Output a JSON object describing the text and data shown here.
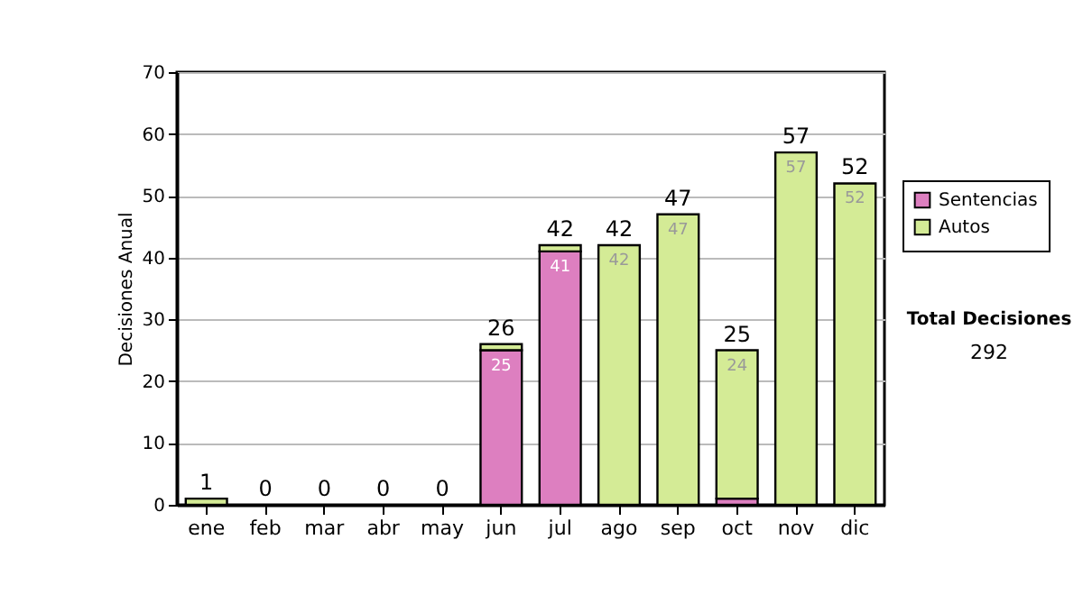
{
  "chart_data": {
    "type": "bar",
    "stacked": true,
    "ylabel": "Decisiones Anual",
    "categories": [
      "ene",
      "feb",
      "mar",
      "abr",
      "may",
      "jun",
      "jul",
      "ago",
      "sep",
      "oct",
      "nov",
      "dic"
    ],
    "series": [
      {
        "name": "Sentencias",
        "color": "#dd7fc0",
        "values": [
          0,
          0,
          0,
          0,
          0,
          25,
          41,
          0,
          0,
          1,
          0,
          0
        ],
        "value_labels": [
          null,
          null,
          null,
          null,
          null,
          "25",
          "41",
          null,
          null,
          null,
          null,
          null
        ]
      },
      {
        "name": "Autos",
        "color": "#d4eb96",
        "values": [
          1,
          0,
          0,
          0,
          0,
          1,
          1,
          42,
          47,
          24,
          57,
          52
        ],
        "value_labels": [
          null,
          null,
          null,
          null,
          null,
          null,
          null,
          "42",
          "47",
          "24",
          "57",
          "52"
        ]
      }
    ],
    "totals": [
      "1",
      "0",
      "0",
      "0",
      "0",
      "26",
      "42",
      "42",
      "47",
      "25",
      "57",
      "52"
    ],
    "ylim": [
      0,
      70
    ],
    "yticks": [
      0,
      10,
      20,
      30,
      40,
      50,
      60,
      70
    ],
    "grid": "y",
    "legend": "right",
    "annotations": [
      "Total Decisiones",
      "292"
    ]
  }
}
